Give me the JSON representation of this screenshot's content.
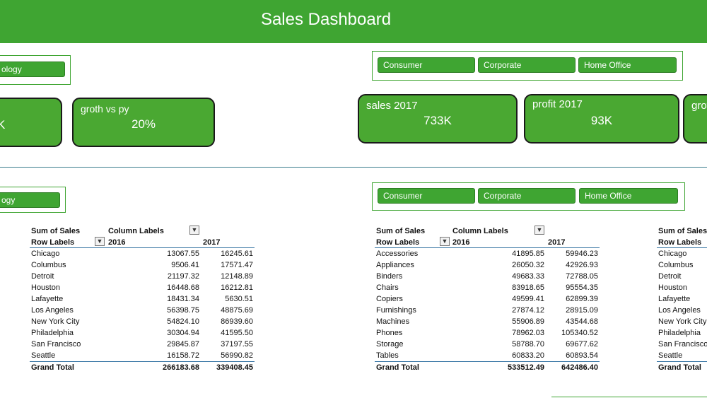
{
  "title": "Sales Dashboard",
  "slicers": {
    "category_top": "ology",
    "category_bottom": "ogy",
    "segment_top": [
      "Consumer",
      "Corporate",
      "Home Office"
    ],
    "segment_bottom": [
      "Consumer",
      "Corporate",
      "Home Office"
    ]
  },
  "kpis": {
    "left_partial_value": "K",
    "growth": {
      "title": "groth vs py",
      "value": "20%"
    },
    "sales": {
      "title": "sales 2017",
      "value": "733K"
    },
    "profit": {
      "title": "profit 2017",
      "value": "93K"
    },
    "right_partial_title": "grot"
  },
  "pivot_city": {
    "sum_label": "Sum of Sales",
    "column_labels": "Column Labels",
    "row_labels": "Row Labels",
    "year1": "2016",
    "year2": "2017",
    "rows": [
      {
        "label": "Chicago",
        "v2016": "13067.55",
        "v2017": "16245.61"
      },
      {
        "label": "Columbus",
        "v2016": "9506.41",
        "v2017": "17571.47"
      },
      {
        "label": "Detroit",
        "v2016": "21197.32",
        "v2017": "12148.89"
      },
      {
        "label": "Houston",
        "v2016": "16448.68",
        "v2017": "16212.81"
      },
      {
        "label": "Lafayette",
        "v2016": "18431.34",
        "v2017": "5630.51"
      },
      {
        "label": "Los Angeles",
        "v2016": "56398.75",
        "v2017": "48875.69"
      },
      {
        "label": "New York City",
        "v2016": "54824.10",
        "v2017": "86939.60"
      },
      {
        "label": "Philadelphia",
        "v2016": "30304.94",
        "v2017": "41595.50"
      },
      {
        "label": "San Francisco",
        "v2016": "29845.87",
        "v2017": "37197.55"
      },
      {
        "label": "Seattle",
        "v2016": "16158.72",
        "v2017": "56990.82"
      }
    ],
    "total_label": "Grand Total",
    "total2016": "266183.68",
    "total2017": "339408.45"
  },
  "pivot_subcat": {
    "sum_label": "Sum of Sales",
    "column_labels": "Column Labels",
    "row_labels": "Row Labels",
    "year1": "2016",
    "year2": "2017",
    "rows": [
      {
        "label": "Accessories",
        "v2016": "41895.85",
        "v2017": "59946.23"
      },
      {
        "label": "Appliances",
        "v2016": "26050.32",
        "v2017": "42926.93"
      },
      {
        "label": "Binders",
        "v2016": "49683.33",
        "v2017": "72788.05"
      },
      {
        "label": "Chairs",
        "v2016": "83918.65",
        "v2017": "95554.35"
      },
      {
        "label": "Copiers",
        "v2016": "49599.41",
        "v2017": "62899.39"
      },
      {
        "label": "Furnishings",
        "v2016": "27874.12",
        "v2017": "28915.09"
      },
      {
        "label": "Machines",
        "v2016": "55906.89",
        "v2017": "43544.68"
      },
      {
        "label": "Phones",
        "v2016": "78962.03",
        "v2017": "105340.52"
      },
      {
        "label": "Storage",
        "v2016": "58788.70",
        "v2017": "69677.62"
      },
      {
        "label": "Tables",
        "v2016": "60833.20",
        "v2017": "60893.54"
      }
    ],
    "total_label": "Grand Total",
    "total2016": "533512.49",
    "total2017": "642486.40"
  },
  "pivot_right": {
    "sum_label": "Sum of Sales",
    "row_labels": "Row Labels",
    "rows": [
      "Chicago",
      "Columbus",
      "Detroit",
      "Houston",
      "Lafayette",
      "Los Angeles",
      "New York City",
      "Philadelphia",
      "San Francisco",
      "Seattle"
    ],
    "total_label": "Grand Total"
  }
}
